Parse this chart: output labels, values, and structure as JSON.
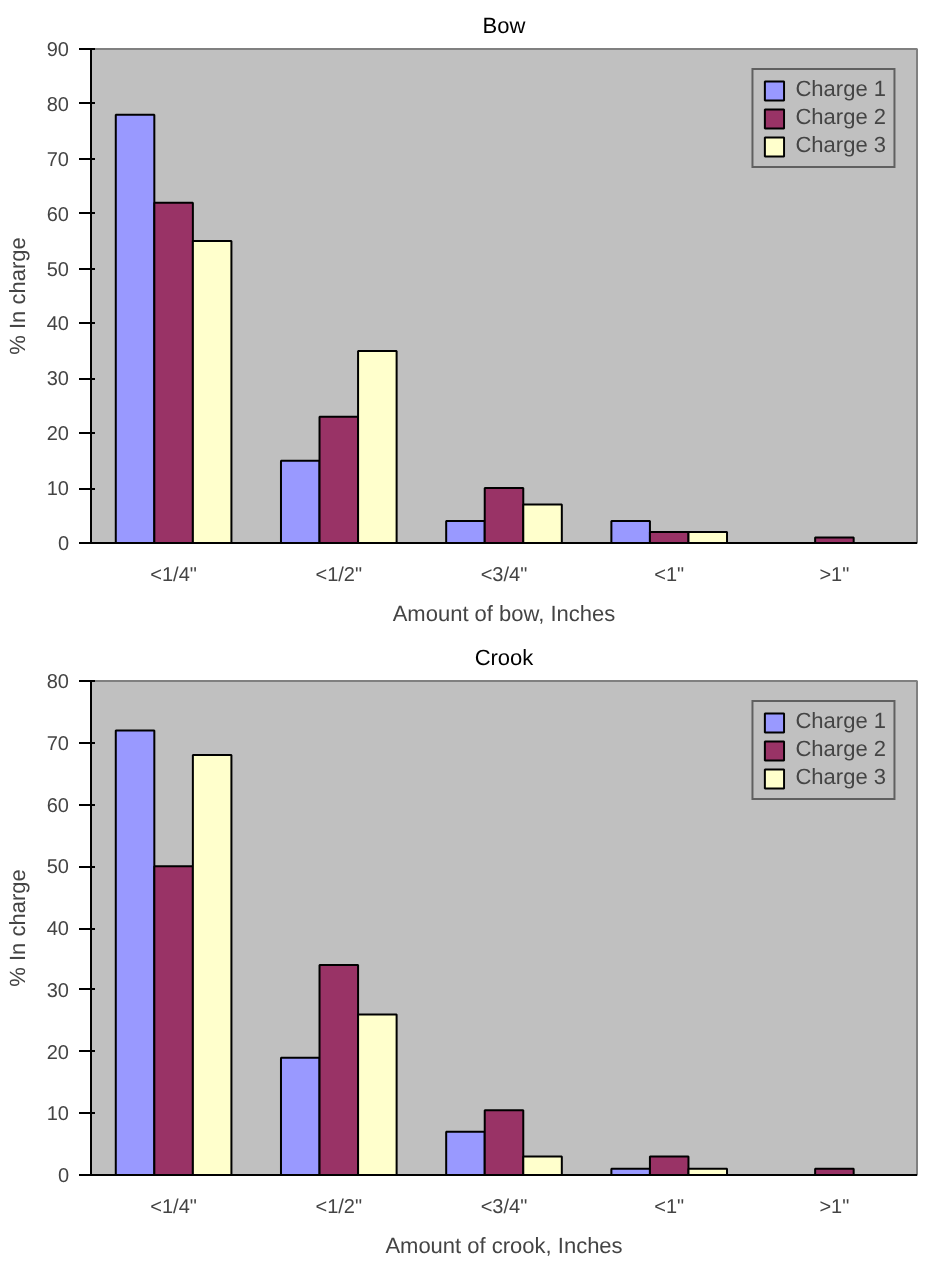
{
  "chart_data": [
    {
      "type": "bar",
      "title": "Bow",
      "xlabel": "Amount of bow, Inches",
      "ylabel": "% In charge",
      "categories": [
        "<1/4\"",
        "<1/2\"",
        "<3/4\"",
        "<1\"",
        ">1\""
      ],
      "series": [
        {
          "name": "Charge 1",
          "color": "#9999ff",
          "values": [
            78,
            15,
            4,
            4,
            null
          ]
        },
        {
          "name": "Charge 2",
          "color": "#993366",
          "values": [
            62,
            23,
            10,
            2,
            1
          ]
        },
        {
          "name": "Charge 3",
          "color": "#ffffcc",
          "values": [
            55,
            35,
            7,
            2,
            null
          ]
        }
      ],
      "ylim": [
        0,
        90
      ],
      "yticks": [
        0,
        10,
        20,
        30,
        40,
        50,
        60,
        70,
        80,
        90
      ],
      "grid": false,
      "legend": "top right"
    },
    {
      "type": "bar",
      "title": "Crook",
      "xlabel": "Amount of crook, Inches",
      "ylabel": "% In charge",
      "categories": [
        "<1/4\"",
        "<1/2\"",
        "<3/4\"",
        "<1\"",
        ">1\""
      ],
      "series": [
        {
          "name": "Charge 1",
          "color": "#9999ff",
          "values": [
            72,
            19,
            7,
            1,
            null
          ]
        },
        {
          "name": "Charge 2",
          "color": "#993366",
          "values": [
            50,
            34,
            10.5,
            3,
            1
          ]
        },
        {
          "name": "Charge 3",
          "color": "#ffffcc",
          "values": [
            68,
            26,
            3,
            1,
            null
          ]
        }
      ],
      "ylim": [
        0,
        80
      ],
      "yticks": [
        0,
        10,
        20,
        30,
        40,
        50,
        60,
        70,
        80
      ],
      "grid": false,
      "legend": "top right"
    }
  ]
}
